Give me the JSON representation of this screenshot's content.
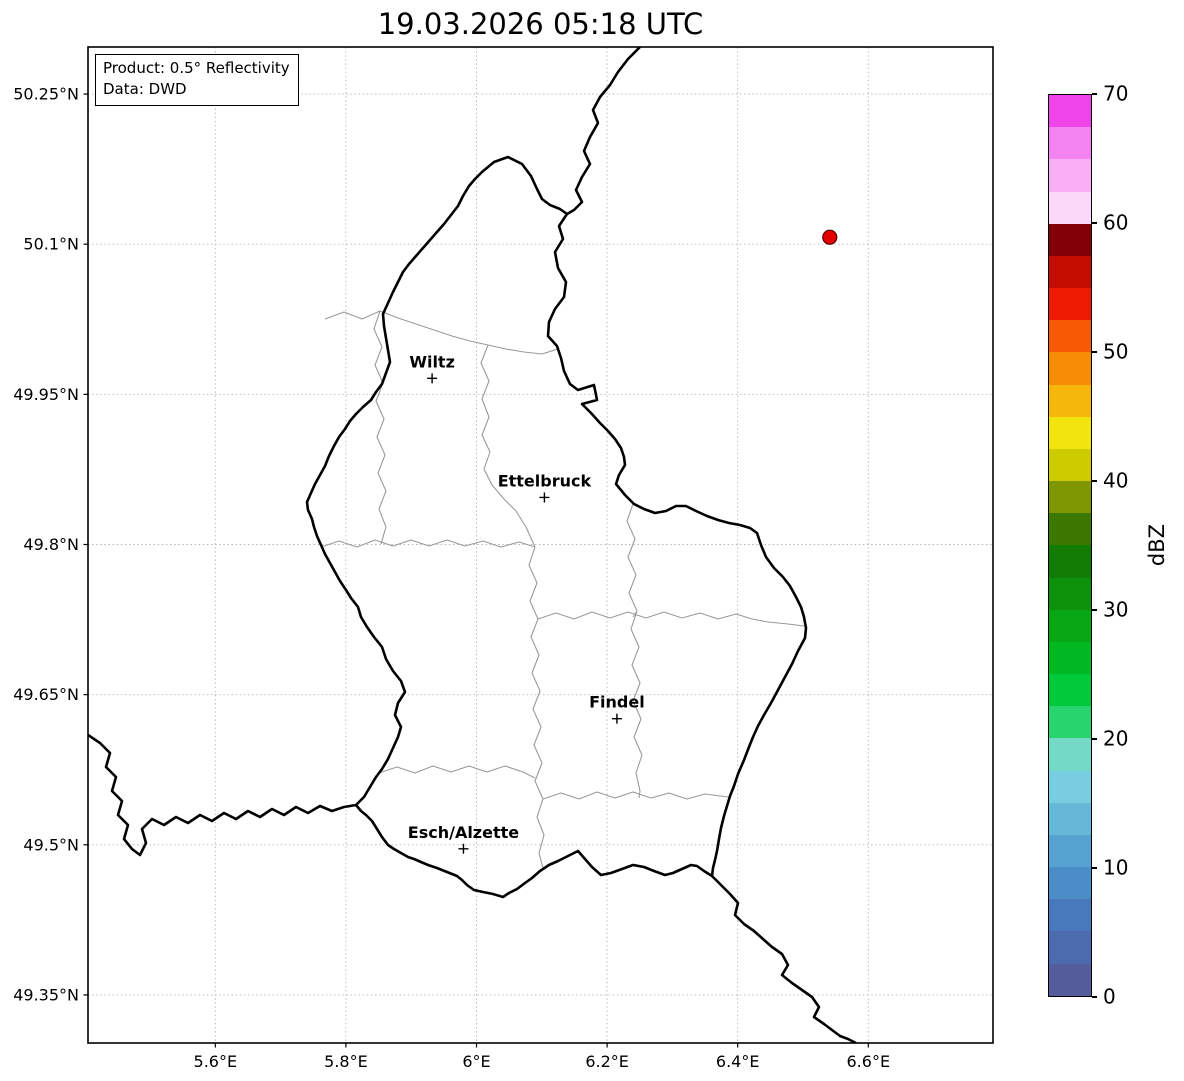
{
  "title": "19.03.2026 05:18 UTC",
  "info_box": {
    "product": "Product: 0.5° Reflectivity",
    "source": "Data: DWD"
  },
  "map": {
    "x_ticks": [
      {
        "label": "5.6°E",
        "lon": 5.6
      },
      {
        "label": "5.8°E",
        "lon": 5.8
      },
      {
        "label": "6°E",
        "lon": 6.0
      },
      {
        "label": "6.2°E",
        "lon": 6.2
      },
      {
        "label": "6.4°E",
        "lon": 6.4
      },
      {
        "label": "6.6°E",
        "lon": 6.6
      }
    ],
    "y_ticks": [
      {
        "label": "50.25°N",
        "lat": 50.25
      },
      {
        "label": "50.1°N",
        "lat": 50.1
      },
      {
        "label": "49.95°N",
        "lat": 49.95
      },
      {
        "label": "49.8°N",
        "lat": 49.8
      },
      {
        "label": "49.65°N",
        "lat": 49.65
      },
      {
        "label": "49.5°N",
        "lat": 49.5
      },
      {
        "label": "49.35°N",
        "lat": 49.35
      }
    ],
    "cities": [
      {
        "name": "Wiltz",
        "lon": 5.932,
        "lat": 49.966
      },
      {
        "name": "Ettelbruck",
        "lon": 6.104,
        "lat": 49.847
      },
      {
        "name": "Findel",
        "lon": 6.215,
        "lat": 49.626
      },
      {
        "name": "Esch/Alzette",
        "lon": 5.98,
        "lat": 49.496
      }
    ],
    "marker": {
      "lon": 6.541,
      "lat": 50.107,
      "color": "#e50000",
      "edge_color": "#550000"
    }
  },
  "colorbar": {
    "label": "dBZ",
    "min": 0,
    "max": 70,
    "ticks": [
      {
        "label": "0",
        "value": 0
      },
      {
        "label": "10",
        "value": 10
      },
      {
        "label": "20",
        "value": 20
      },
      {
        "label": "30",
        "value": 30
      },
      {
        "label": "40",
        "value": 40
      },
      {
        "label": "50",
        "value": 50
      },
      {
        "label": "60",
        "value": 60
      },
      {
        "label": "70",
        "value": 70
      }
    ],
    "colors_bottom_to_top": [
      "#545c9c",
      "#4c6aae",
      "#4779bc",
      "#4b8dc7",
      "#56a2d1",
      "#66b8d9",
      "#78cde0",
      "#74dac6",
      "#27d46e",
      "#00ca39",
      "#00b922",
      "#07a614",
      "#0d910b",
      "#127b04",
      "#3c7800",
      "#7e9600",
      "#cdca00",
      "#f2e40e",
      "#f5b70b",
      "#f78c06",
      "#f75a04",
      "#ee1a01",
      "#c40d00",
      "#840008",
      "#fbd8fa",
      "#f8aff6",
      "#f383f0",
      "#ee44ea"
    ]
  },
  "style": {
    "border_color": "#000000",
    "district_color": "#9a9a9a",
    "grid_color": "#b5b5b5"
  }
}
